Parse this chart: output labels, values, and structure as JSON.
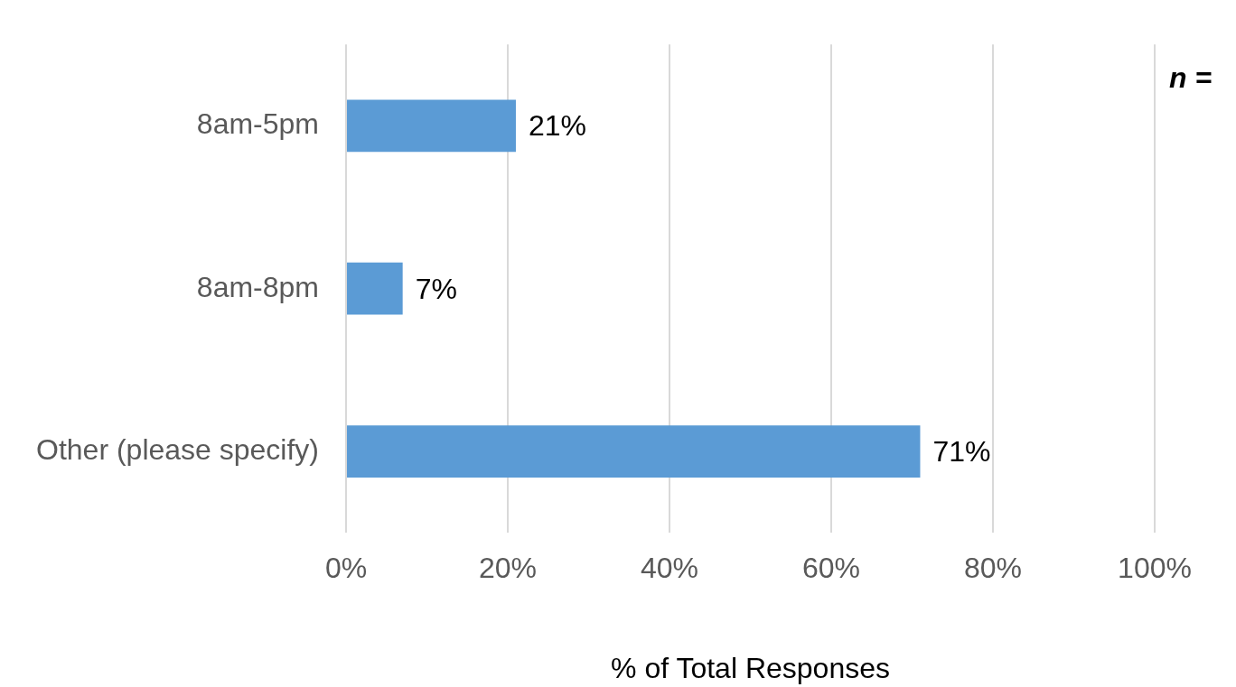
{
  "chart_data": {
    "type": "bar",
    "orientation": "horizontal",
    "categories": [
      "8am-5pm",
      "8am-8pm",
      "Other (please specify)"
    ],
    "values": [
      21,
      7,
      71
    ],
    "color": "#5b9bd5",
    "value_labels": [
      "21%",
      "7%",
      "71%"
    ],
    "xlim": [
      0,
      100
    ],
    "xticks": [
      {
        "value": 0,
        "label": "0%"
      },
      {
        "value": 20,
        "label": "20%"
      },
      {
        "value": 40,
        "label": "40%"
      },
      {
        "value": 60,
        "label": "60%"
      },
      {
        "value": 80,
        "label": "80%"
      },
      {
        "value": 100,
        "label": "100%"
      }
    ],
    "xlabel": "% of Total Responses",
    "grid": "x",
    "legend": false,
    "annotations": [
      "n ="
    ]
  }
}
